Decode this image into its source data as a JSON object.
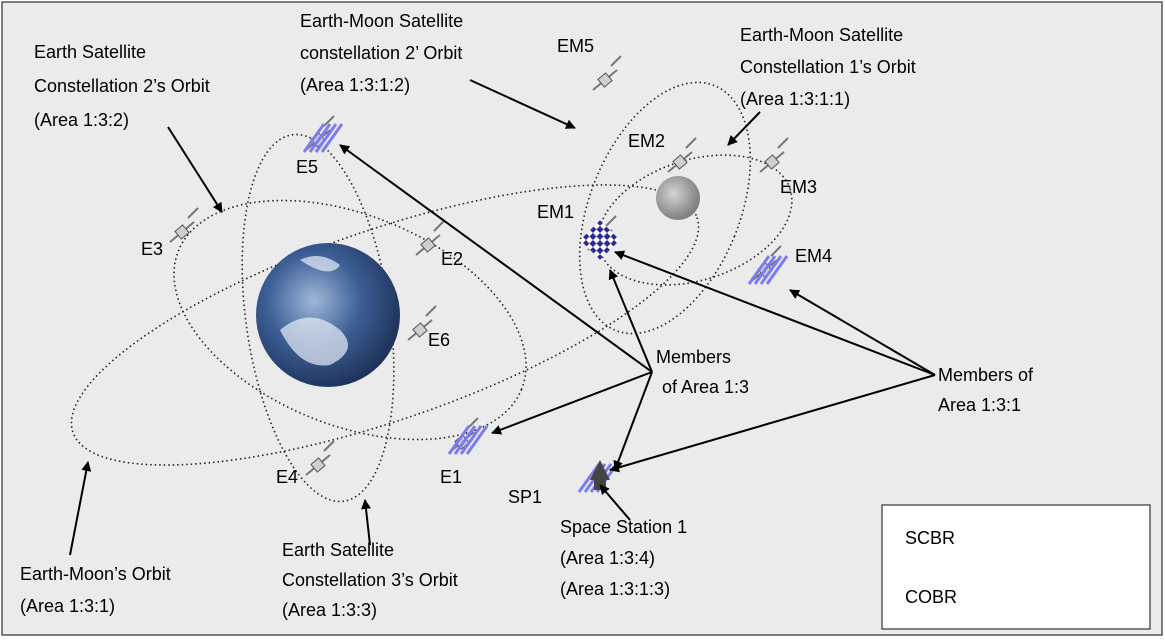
{
  "labels": [
    {
      "lines": [
        "Earth Satellite",
        "Constellation 2’s Orbit",
        "(Area 1:3:2)"
      ]
    },
    {
      "lines": [
        "Earth-Moon Satellite",
        "constellation 2’ Orbit",
        "(Area 1:3:1:2)"
      ]
    },
    {
      "lines": [
        "Earth-Moon Satellite",
        "Constellation 1’s Orbit",
        "(Area 1:3:1:1)"
      ]
    },
    {
      "lines": [
        "Earth-Moon’s Orbit",
        "(Area 1:3:1)"
      ]
    },
    {
      "lines": [
        "Earth Satellite",
        "Constellation 3’s Orbit",
        "(Area 1:3:3)"
      ]
    },
    {
      "lines": [
        "Space Station 1",
        "(Area 1:3:4)",
        "(Area 1:3:1:3)"
      ]
    },
    {
      "lines": [
        "Members",
        "of Area 1:3"
      ]
    },
    {
      "lines": [
        "Members of",
        "Area 1:3:1"
      ]
    }
  ],
  "nodes": [
    "EM5",
    "EM2",
    "EM3",
    "EM1",
    "EM4",
    "E5",
    "E3",
    "E2",
    "E6",
    "E1",
    "E4",
    "SP1"
  ],
  "legend": [
    "SCBR",
    "COBR"
  ]
}
